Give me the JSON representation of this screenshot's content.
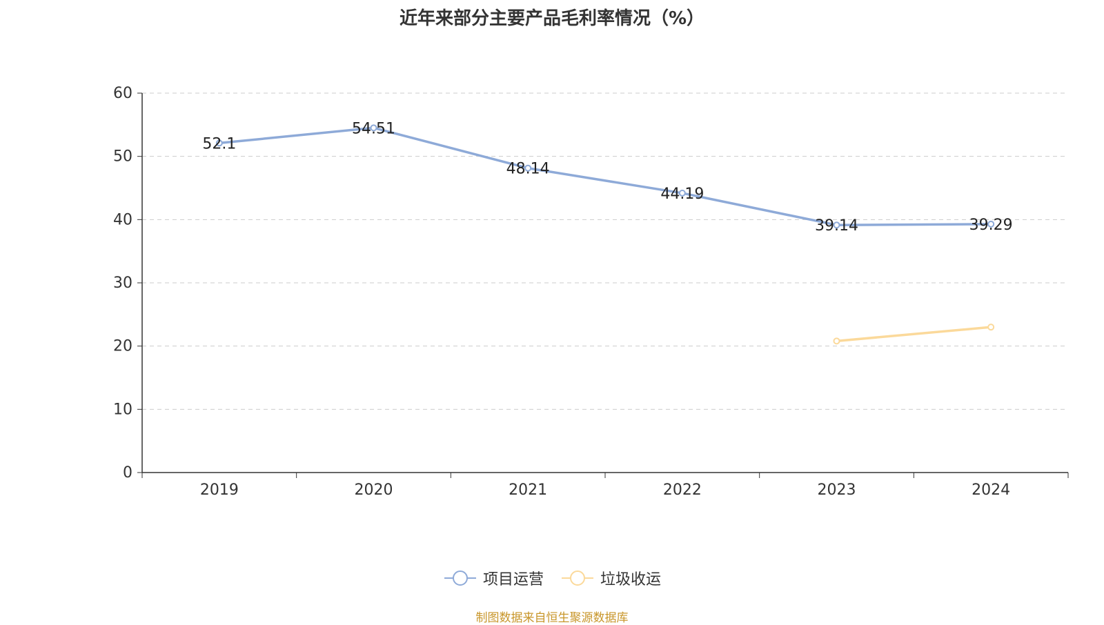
{
  "chart_data": {
    "type": "line",
    "title": "近年来部分主要产品毛利率情况（%）",
    "categories": [
      "2019",
      "2020",
      "2021",
      "2022",
      "2023",
      "2024"
    ],
    "series": [
      {
        "name": "项目运营",
        "color": "#8eaad8",
        "values": [
          52.1,
          54.51,
          48.14,
          44.19,
          39.14,
          39.29
        ],
        "labels": [
          "52.1",
          "54.51",
          "48.14",
          "44.19",
          "39.14",
          "39.29"
        ]
      },
      {
        "name": "垃圾收运",
        "color": "#fbd99a",
        "values": [
          null,
          null,
          null,
          null,
          20.8,
          23.0
        ],
        "labels": []
      }
    ],
    "yticks": [
      "0",
      "10",
      "20",
      "30",
      "40",
      "50",
      "60"
    ],
    "ylim": [
      0,
      60
    ],
    "grid": true,
    "legend": "bottom-center"
  },
  "source": "制图数据来自恒生聚源数据库"
}
